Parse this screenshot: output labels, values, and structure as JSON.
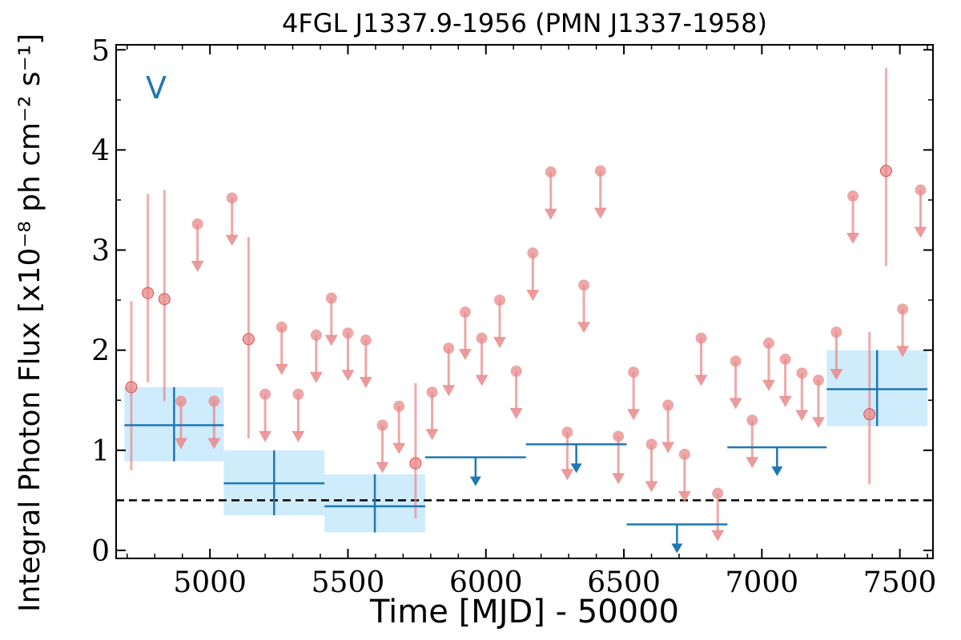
{
  "chart_data": {
    "type": "scatter",
    "title": "4FGL J1337.9-1956 (PMN J1337-1958)",
    "xlabel": "Time [MJD] - 50000",
    "ylabel": "Integral Photon Flux [x10⁻⁸ ph cm⁻² s⁻¹]",
    "band_label": "V",
    "xlim": [
      4660,
      7620
    ],
    "ylim": [
      -0.08,
      5.05
    ],
    "x_ticks": [
      5000,
      5500,
      6000,
      6500,
      7000,
      7500
    ],
    "x_tick_labels": [
      "5000",
      "5500",
      "6000",
      "6500",
      "7000",
      "7500"
    ],
    "y_ticks": [
      0,
      1,
      2,
      3,
      4,
      5
    ],
    "y_tick_labels": [
      "0",
      "1",
      "2",
      "3",
      "4",
      "5"
    ],
    "reference_level": 0.5,
    "colors": {
      "short_bins": "#e8898b",
      "long_bins": "#1f77b4",
      "long_bin_band": "#bfe6fb",
      "reference_line": "#000000"
    },
    "series": [
      {
        "kind": "short-timescale detections",
        "points": [
          {
            "x": 4715,
            "y": 1.63,
            "lo": 0.8,
            "hi": 2.49
          },
          {
            "x": 4775,
            "y": 2.57,
            "lo": 1.68,
            "hi": 3.56
          },
          {
            "x": 4835,
            "y": 2.51,
            "lo": 1.49,
            "hi": 3.6
          },
          {
            "x": 5140,
            "y": 2.11,
            "lo": 1.12,
            "hi": 3.13
          },
          {
            "x": 5745,
            "y": 0.87,
            "lo": 0.32,
            "hi": 1.67
          },
          {
            "x": 7390,
            "y": 1.36,
            "lo": 0.66,
            "hi": 2.18
          },
          {
            "x": 7450,
            "y": 3.79,
            "lo": 2.84,
            "hi": 4.82
          }
        ]
      },
      {
        "kind": "short-timescale upper limits",
        "x": [
          4895,
          5015,
          4955,
          5080,
          5200,
          5260,
          5320,
          5385,
          5440,
          5500,
          5565,
          5625,
          5685,
          5805,
          5865,
          5925,
          5985,
          6050,
          6110,
          6170,
          6235,
          6295,
          6355,
          6415,
          6480,
          6535,
          6600,
          6660,
          6720,
          6780,
          6840,
          6905,
          6965,
          7025,
          7085,
          7145,
          7205,
          7270,
          7330,
          7510,
          7575
        ],
        "y": [
          1.49,
          1.49,
          3.26,
          3.52,
          1.56,
          2.23,
          1.56,
          2.15,
          2.52,
          2.17,
          2.1,
          1.25,
          1.44,
          1.58,
          2.02,
          2.38,
          2.12,
          2.5,
          1.79,
          2.97,
          3.78,
          1.18,
          2.65,
          3.79,
          1.14,
          1.78,
          1.06,
          1.45,
          0.96,
          2.12,
          0.57,
          1.89,
          1.3,
          2.07,
          1.91,
          1.77,
          1.7,
          2.18,
          3.54,
          2.41,
          3.6
        ]
      },
      {
        "kind": "long-timescale detections",
        "points": [
          {
            "x0": 4690,
            "x1": 5050,
            "y": 1.25,
            "lo": 0.89,
            "hi": 1.63
          },
          {
            "x0": 5050,
            "x1": 5415,
            "y": 0.67,
            "lo": 0.35,
            "hi": 1.0
          },
          {
            "x0": 5415,
            "x1": 5780,
            "y": 0.44,
            "lo": 0.18,
            "hi": 0.76
          },
          {
            "x0": 7235,
            "x1": 7600,
            "y": 1.61,
            "lo": 1.24,
            "hi": 2.0
          }
        ]
      },
      {
        "kind": "long-timescale upper limits",
        "points": [
          {
            "x0": 5780,
            "x1": 6145,
            "y": 0.93
          },
          {
            "x0": 6145,
            "x1": 6510,
            "y": 1.06
          },
          {
            "x0": 6510,
            "x1": 6875,
            "y": 0.26
          },
          {
            "x0": 6875,
            "x1": 7235,
            "y": 1.03
          }
        ]
      }
    ]
  }
}
